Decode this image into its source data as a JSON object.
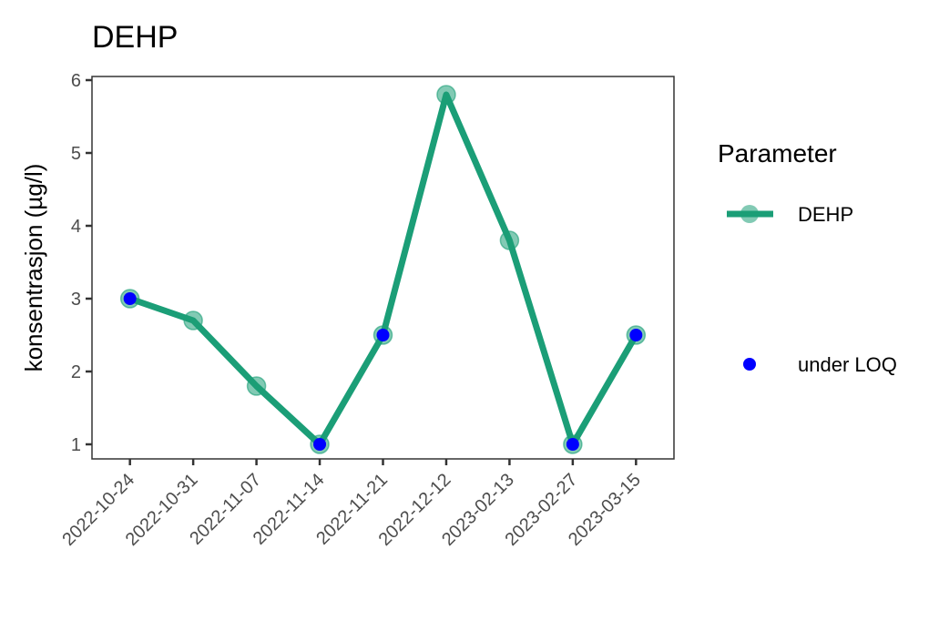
{
  "chart_data": {
    "type": "line",
    "title": "DEHP",
    "xlabel": "",
    "ylabel": "konsentrasjon (µg/l)",
    "categories": [
      "2022-10-24",
      "2022-10-31",
      "2022-11-07",
      "2022-11-14",
      "2022-11-21",
      "2022-12-12",
      "2023-02-13",
      "2023-02-27",
      "2023-03-15"
    ],
    "series": [
      {
        "name": "DEHP",
        "color": "#1b9e77",
        "values": [
          3.0,
          2.7,
          1.8,
          1.0,
          2.5,
          5.8,
          3.8,
          1.0,
          2.5
        ],
        "under_loq": [
          true,
          false,
          false,
          true,
          true,
          false,
          false,
          true,
          true
        ]
      }
    ],
    "ylim": [
      0.8,
      6.05
    ],
    "yticks": [
      1,
      2,
      3,
      4,
      5,
      6
    ],
    "grid": false,
    "legend": {
      "title": "Parameter",
      "placement": "right",
      "entries": [
        {
          "label": "DEHP",
          "kind": "line-point",
          "color": "#1b9e77"
        },
        {
          "label": "under LOQ",
          "kind": "point",
          "color": "#0000ff"
        }
      ]
    },
    "loq_color": "#0000ff"
  }
}
